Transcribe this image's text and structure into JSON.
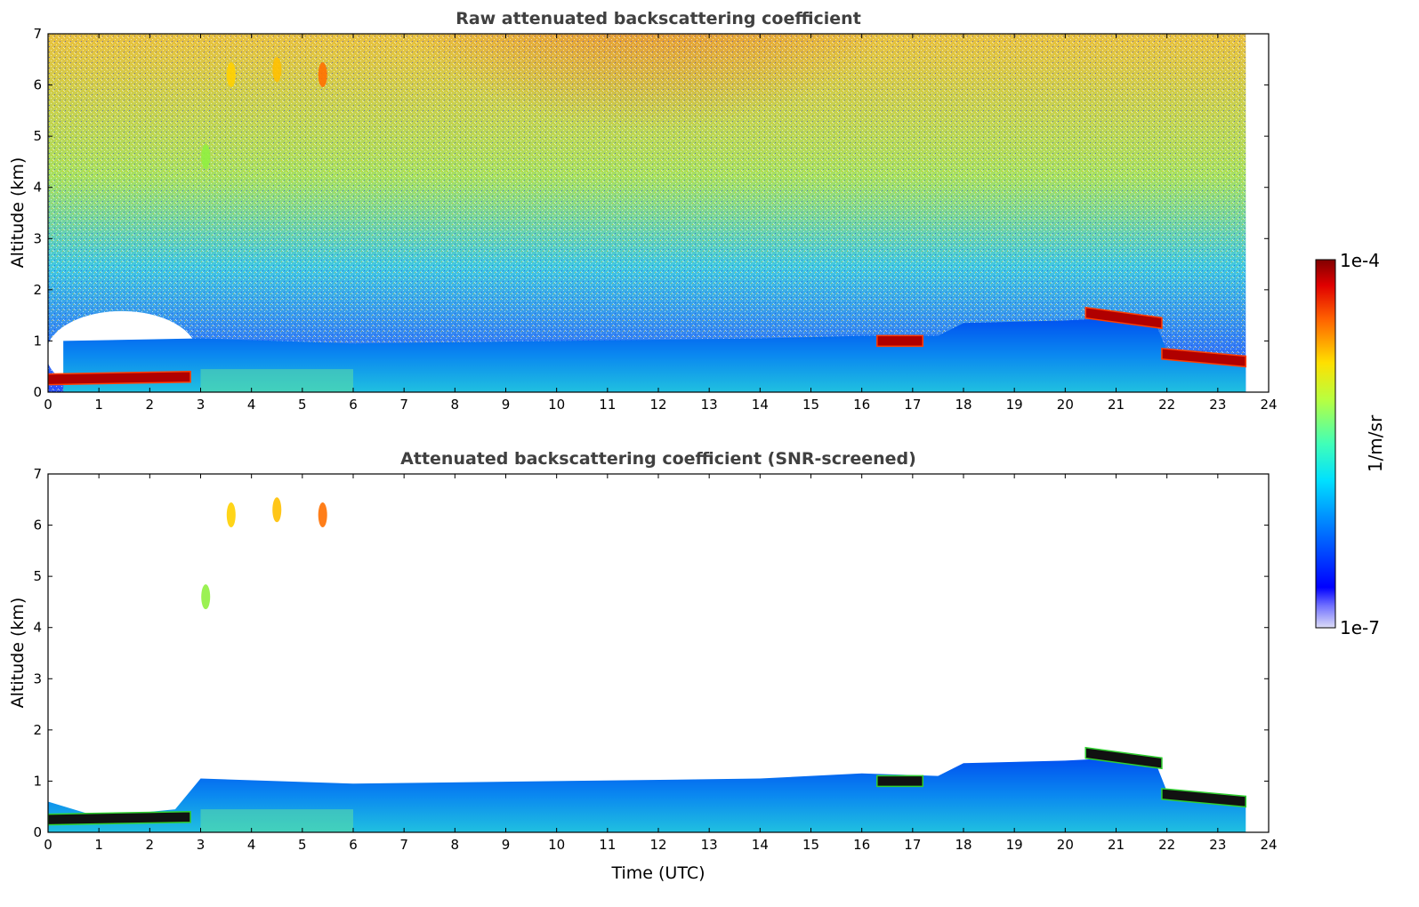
{
  "chart_data": [
    {
      "type": "heatmap",
      "title": "Raw attenuated backscattering coefficient",
      "xlabel": "",
      "ylabel": "Altitude (km)",
      "xlim": [
        0,
        24
      ],
      "ylim": [
        0,
        7
      ],
      "x_ticks": [
        "0",
        "1",
        "2",
        "3",
        "4",
        "5",
        "6",
        "7",
        "8",
        "9",
        "10",
        "11",
        "12",
        "13",
        "14",
        "15",
        "16",
        "17",
        "18",
        "19",
        "20",
        "21",
        "22",
        "23",
        "24"
      ],
      "y_ticks": [
        "0",
        "1",
        "2",
        "3",
        "4",
        "5",
        "6",
        "7"
      ],
      "data_end_hour": 23.55,
      "boundary_layer_top_km": [
        [
          0.3,
          1.0
        ],
        [
          3.0,
          1.05
        ],
        [
          6,
          0.95
        ],
        [
          10,
          1.0
        ],
        [
          14,
          1.05
        ],
        [
          16,
          1.1
        ],
        [
          17.5,
          1.1
        ],
        [
          18,
          1.35
        ],
        [
          20,
          1.4
        ],
        [
          21,
          1.45
        ],
        [
          21.8,
          1.3
        ],
        [
          22,
          0.8
        ],
        [
          23.55,
          0.65
        ]
      ],
      "cloud_layers": [
        {
          "t_start": 0.0,
          "t_end": 2.8,
          "alt_start_km": 0.25,
          "alt_end_km": 0.3
        },
        {
          "t_start": 16.3,
          "t_end": 17.2,
          "alt_start_km": 1.0,
          "alt_end_km": 1.0
        },
        {
          "t_start": 20.4,
          "t_end": 21.9,
          "alt_start_km": 1.55,
          "alt_end_km": 1.35
        },
        {
          "t_start": 21.9,
          "t_end": 23.55,
          "alt_start_km": 0.75,
          "alt_end_km": 0.6
        }
      ],
      "aerosol_plumes": [
        {
          "t": 3.1,
          "alt_km": 4.6
        },
        {
          "t": 3.6,
          "alt_km": 6.2
        },
        {
          "t": 4.5,
          "alt_km": 6.3
        },
        {
          "t": 5.4,
          "alt_km": 6.2
        }
      ],
      "background_noise": "high"
    },
    {
      "type": "heatmap",
      "title": "Attenuated backscattering coefficient (SNR-screened)",
      "xlabel": "Time (UTC)",
      "ylabel": "Altitude (km)",
      "xlim": [
        0,
        24
      ],
      "ylim": [
        0,
        7
      ],
      "x_ticks": [
        "0",
        "1",
        "2",
        "3",
        "4",
        "5",
        "6",
        "7",
        "8",
        "9",
        "10",
        "11",
        "12",
        "13",
        "14",
        "15",
        "16",
        "17",
        "18",
        "19",
        "20",
        "21",
        "22",
        "23",
        "24"
      ],
      "y_ticks": [
        "0",
        "1",
        "2",
        "3",
        "4",
        "5",
        "6",
        "7"
      ],
      "data_end_hour": 23.55,
      "boundary_layer_top_km": [
        [
          0.0,
          0.6
        ],
        [
          1.0,
          0.3
        ],
        [
          2.5,
          0.45
        ],
        [
          3.0,
          1.05
        ],
        [
          6,
          0.95
        ],
        [
          10,
          1.0
        ],
        [
          14,
          1.05
        ],
        [
          16,
          1.15
        ],
        [
          17.5,
          1.1
        ],
        [
          18,
          1.35
        ],
        [
          20,
          1.4
        ],
        [
          21,
          1.45
        ],
        [
          21.8,
          1.3
        ],
        [
          22,
          0.8
        ],
        [
          23.55,
          0.65
        ]
      ],
      "cloud_layers": [
        {
          "t_start": 0.0,
          "t_end": 2.8,
          "alt_start_km": 0.25,
          "alt_end_km": 0.3
        },
        {
          "t_start": 16.3,
          "t_end": 17.2,
          "alt_start_km": 1.0,
          "alt_end_km": 1.0
        },
        {
          "t_start": 20.4,
          "t_end": 21.9,
          "alt_start_km": 1.55,
          "alt_end_km": 1.35
        },
        {
          "t_start": 21.9,
          "t_end": 23.55,
          "alt_start_km": 0.75,
          "alt_end_km": 0.6
        }
      ],
      "aerosol_plumes": [
        {
          "t": 3.1,
          "alt_km": 4.6
        },
        {
          "t": 3.6,
          "alt_km": 6.2
        },
        {
          "t": 4.5,
          "alt_km": 6.3
        },
        {
          "t": 5.4,
          "alt_km": 6.2
        }
      ],
      "background_noise": "none"
    }
  ],
  "colorbar": {
    "label": "1/m/sr",
    "min_label": "1e-7",
    "max_label": "1e-4",
    "colormap": "jet",
    "scale": "log"
  }
}
